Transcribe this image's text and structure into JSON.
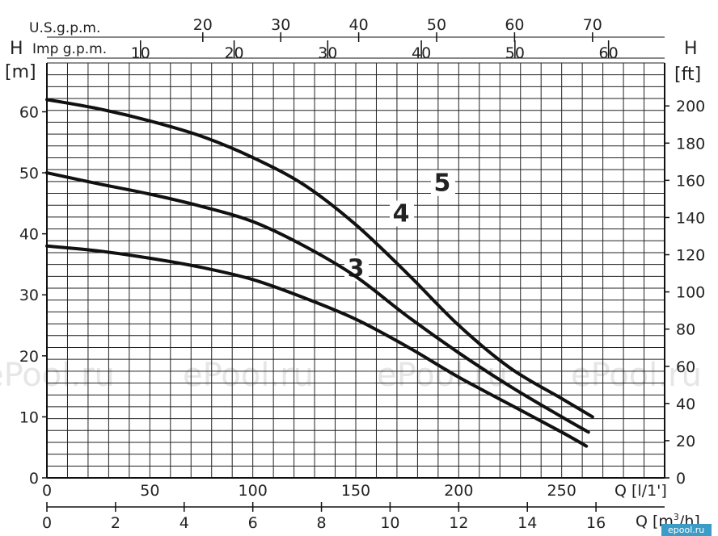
{
  "chart_data": {
    "type": "line",
    "grid": true,
    "left_axis": {
      "label_letter": "H",
      "unit": "[m]",
      "ticks": [
        "0",
        "10",
        "20",
        "30",
        "40",
        "50",
        "60"
      ],
      "range": [
        0,
        68
      ]
    },
    "right_axis": {
      "label_letter": "H",
      "unit": "[ft]",
      "ticks": [
        "0",
        "20",
        "40",
        "60",
        "80",
        "100",
        "120",
        "140",
        "160",
        "180",
        "200"
      ]
    },
    "bottom_axis_1": {
      "unit": "Q [l/1']",
      "ticks": [
        "0",
        "50",
        "100",
        "150",
        "200",
        "250"
      ],
      "range": [
        0,
        300
      ]
    },
    "bottom_axis_2": {
      "unit_prefix": "Q [m",
      "unit_sup": "3",
      "unit_suffix": "/h]",
      "ticks": [
        "0",
        "2",
        "4",
        "6",
        "8",
        "10",
        "12",
        "14",
        "16"
      ]
    },
    "top_axis_1": {
      "unit": "U.S.g.p.m.",
      "ticks": [
        "20",
        "30",
        "40",
        "50",
        "60",
        "70"
      ]
    },
    "top_axis_2": {
      "unit": "Imp g.p.m.",
      "ticks": [
        "10",
        "20",
        "30",
        "40",
        "50",
        "60"
      ]
    },
    "series": [
      {
        "name": "3",
        "x": [
          0,
          25,
          50,
          75,
          100,
          125,
          150,
          175,
          200,
          225,
          250,
          262
        ],
        "y": [
          38,
          37.2,
          36,
          34.5,
          32.5,
          29.5,
          26,
          21.5,
          16.5,
          12,
          7.5,
          5.2
        ]
      },
      {
        "name": "4",
        "x": [
          0,
          25,
          50,
          75,
          100,
          125,
          150,
          175,
          200,
          225,
          250,
          263
        ],
        "y": [
          50,
          48.2,
          46.5,
          44.5,
          42,
          38,
          33,
          26.5,
          20.5,
          15,
          10,
          7.5
        ]
      },
      {
        "name": "5",
        "x": [
          0,
          25,
          50,
          75,
          100,
          125,
          150,
          175,
          200,
          225,
          250,
          265
        ],
        "y": [
          62,
          60.5,
          58.5,
          56,
          52.5,
          48,
          41.5,
          33.5,
          25,
          18,
          13,
          10
        ]
      }
    ],
    "watermarks": [
      "ePool.ru",
      "ePool.ru",
      "ePool.ru",
      "ePool.ru"
    ],
    "logo": "epool.ru"
  }
}
